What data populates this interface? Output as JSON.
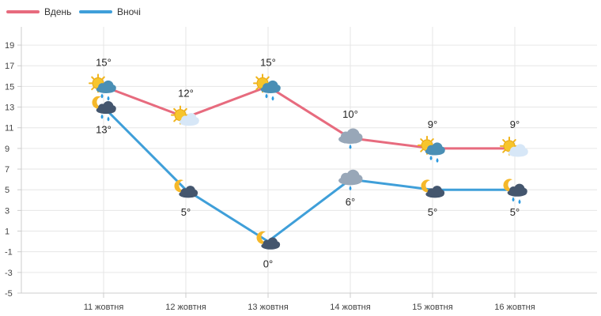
{
  "colors": {
    "day": "#e76b7e",
    "night": "#3f9fd9",
    "grid": "#e6e6e6",
    "axis": "#cccccc",
    "text": "#444444"
  },
  "legend": {
    "day_label": "Вдень",
    "night_label": "Вночі"
  },
  "chart_data": {
    "type": "line",
    "categories": [
      "11 жовтня",
      "12 жовтня",
      "13 жовтня",
      "14 жовтня",
      "15 жовтня",
      "16 жовтня"
    ],
    "series": [
      {
        "name": "Вдень",
        "values": [
          15,
          12,
          15,
          10,
          9,
          9
        ],
        "labels": [
          "15°",
          "12°",
          "15°",
          "10°",
          "9°",
          "9°"
        ],
        "icons": [
          "sun-cloud-rain-icon",
          "sun-cloud-icon",
          "sun-cloud-rain-icon",
          "cloud-rain-icon",
          "sun-cloud-rain-icon",
          "sun-cloud-icon"
        ]
      },
      {
        "name": "Вночі",
        "values": [
          13,
          5,
          0,
          6,
          5,
          5
        ],
        "labels": [
          "13°",
          "5°",
          "0°",
          "6°",
          "5°",
          "5°"
        ],
        "icons": [
          "moon-cloud-rain-icon",
          "moon-cloud-icon",
          "moon-cloud-icon",
          "cloud-rain-icon",
          "moon-cloud-icon",
          "moon-cloud-rain-icon"
        ]
      }
    ],
    "y_ticks": [
      19,
      17,
      15,
      13,
      11,
      9,
      7,
      5,
      3,
      1,
      -1,
      -3,
      -5
    ],
    "ylim": [
      -5,
      20
    ],
    "grid": true,
    "legend_position": "top-left"
  }
}
